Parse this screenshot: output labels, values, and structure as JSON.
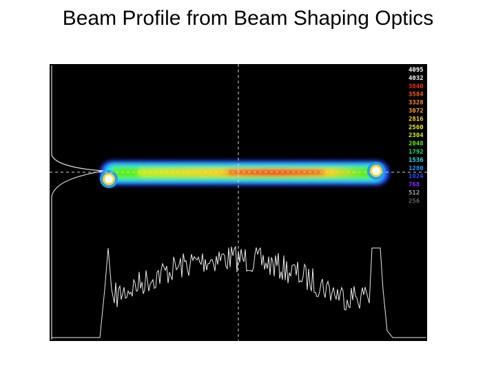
{
  "title": "Beam Profile from Beam Shaping Optics",
  "image": {
    "scale": [
      {
        "label": "4095",
        "color": "#ffffff"
      },
      {
        "label": "4032",
        "color": "#f0f0f0"
      },
      {
        "label": "3840",
        "color": "#ff2a1a"
      },
      {
        "label": "3584",
        "color": "#ff5a1a"
      },
      {
        "label": "3328",
        "color": "#ff8a1a"
      },
      {
        "label": "3072",
        "color": "#ffa01a"
      },
      {
        "label": "2816",
        "color": "#ffd01a"
      },
      {
        "label": "2560",
        "color": "#f0f01a"
      },
      {
        "label": "2304",
        "color": "#c8f01a"
      },
      {
        "label": "2048",
        "color": "#5af01a"
      },
      {
        "label": "1792",
        "color": "#1ae05a"
      },
      {
        "label": "1536",
        "color": "#1ae0e0"
      },
      {
        "label": "1280",
        "color": "#1aa0ff"
      },
      {
        "label": "1024",
        "color": "#2a4aff"
      },
      {
        "label": "768",
        "color": "#8a2aff"
      },
      {
        "label": "512",
        "color": "#a0a0a0"
      },
      {
        "label": "256",
        "color": "#606060"
      }
    ]
  }
}
